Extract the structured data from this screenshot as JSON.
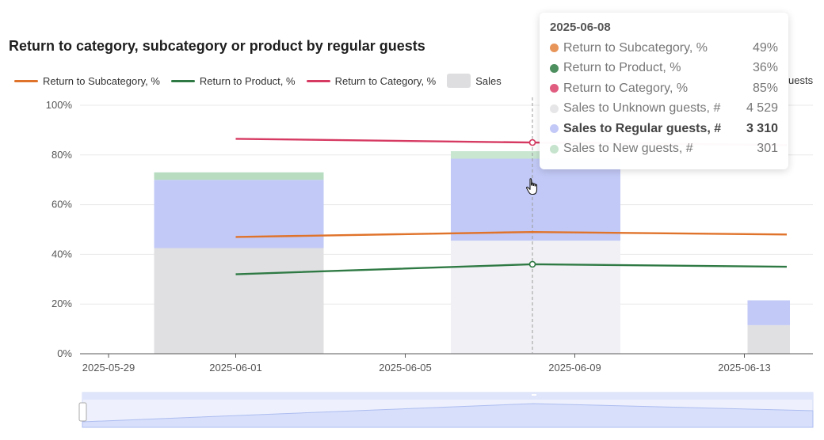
{
  "title": "Return to category, subcategory or product by regular guests",
  "colors": {
    "subcategory": "#e0732b",
    "product": "#2f7a44",
    "category": "#d63a62",
    "unknown": "#e0e0e3",
    "regular": "#c2c9f6",
    "new": "#b7dcc0",
    "axis": "#5a5a5a",
    "grid": "#e8e8e8"
  },
  "legend": [
    {
      "label": "Return to Subcategory, %",
      "kind": "line",
      "color": "#e0732b"
    },
    {
      "label": "Return to Product, %",
      "kind": "line",
      "color": "#2f7a44"
    },
    {
      "label": "Return to Category, %",
      "kind": "line",
      "color": "#d63a62"
    },
    {
      "label": "Sales",
      "kind": "box",
      "color": "#dedee0"
    }
  ],
  "legend_trailing": "uests",
  "chart_data": {
    "type": "bar",
    "title": "Return to category, subcategory or product by regular guests",
    "y_axis": {
      "range": [
        0,
        100
      ],
      "ticks": [
        "0%",
        "20%",
        "40%",
        "60%",
        "80%",
        "100%"
      ],
      "grid": true
    },
    "x_axis": {
      "type": "date",
      "tick_labels": [
        "2025-05-29",
        "2025-06-01",
        "2025-06-05",
        "2025-06-09",
        "2025-06-13"
      ]
    },
    "stacked_bars": {
      "periods": [
        {
          "start": "2025-05-30",
          "end": "2025-06-03"
        },
        {
          "start": "2025-06-06",
          "end": "2025-06-10"
        },
        {
          "start": "2025-06-13",
          "end": "2025-06-14"
        }
      ],
      "series": [
        {
          "name": "Sales to Unknown guests, #",
          "values": [
            42.5,
            45.5,
            11.5
          ]
        },
        {
          "name": "Sales to Regular guests, #",
          "values": [
            27.5,
            33,
            10
          ]
        },
        {
          "name": "Sales to New guests, #",
          "values": [
            3,
            3,
            0
          ]
        }
      ]
    },
    "lines": [
      {
        "name": "Return to Category, %",
        "points": [
          {
            "x": "2025-06-01",
            "y": 86.5
          },
          {
            "x": "2025-06-08",
            "y": 85
          },
          {
            "x": "2025-06-14",
            "y": 84
          }
        ]
      },
      {
        "name": "Return to Subcategory, %",
        "points": [
          {
            "x": "2025-06-01",
            "y": 47
          },
          {
            "x": "2025-06-08",
            "y": 49
          },
          {
            "x": "2025-06-14",
            "y": 48
          }
        ]
      },
      {
        "name": "Return to Product, %",
        "points": [
          {
            "x": "2025-06-01",
            "y": 32
          },
          {
            "x": "2025-06-08",
            "y": 36
          },
          {
            "x": "2025-06-14",
            "y": 35
          }
        ]
      }
    ],
    "hover_date": "2025-06-08"
  },
  "tooltip": {
    "date": "2025-06-08",
    "rows": [
      {
        "name": "Return to Subcategory, %",
        "value": "49%",
        "color": "#e8955a",
        "bold": false
      },
      {
        "name": "Return to Product, %",
        "value": "36%",
        "color": "#4e8f5f",
        "bold": false
      },
      {
        "name": "Return to Category, %",
        "value": "85%",
        "color": "#e05d80",
        "bold": false
      },
      {
        "name": "Sales to Unknown guests, #",
        "value": "4 529",
        "color": "#e6e6e8",
        "bold": false
      },
      {
        "name": "Sales to Regular guests, #",
        "value": "3 310",
        "color": "#c2c9f6",
        "bold": true
      },
      {
        "name": "Sales to New guests, #",
        "value": "301",
        "color": "#c6e3cd",
        "bold": false
      }
    ]
  }
}
